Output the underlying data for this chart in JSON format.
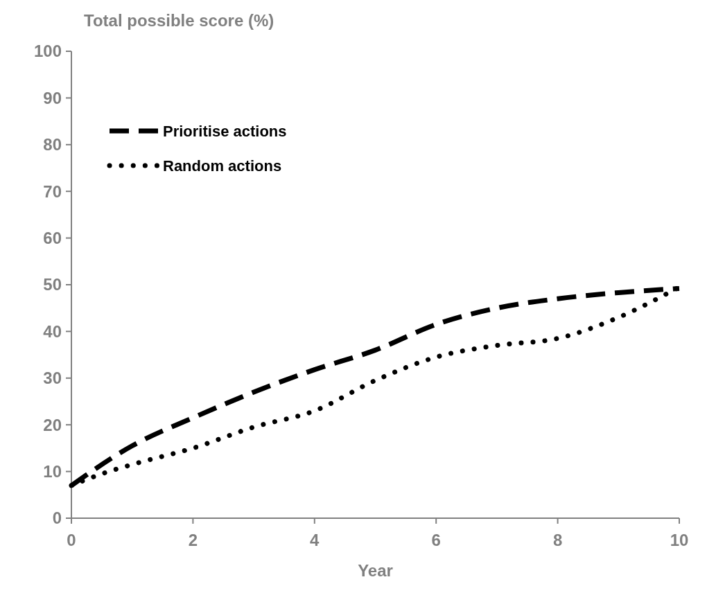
{
  "chart_data": {
    "type": "line",
    "ylabel": "Total possible score (%)",
    "xlabel": "Year",
    "xlim": [
      0,
      10
    ],
    "xticks": [
      0,
      2,
      4,
      6,
      8,
      10
    ],
    "ylim": [
      0,
      100
    ],
    "yticks": [
      0,
      10,
      20,
      30,
      40,
      50,
      60,
      70,
      80,
      90,
      100
    ],
    "grid": false,
    "legend": "top left",
    "marker": "none",
    "series": [
      {
        "name": "Prioritise actions",
        "color": "#000000",
        "line_style": "dashed",
        "x": [
          0,
          1,
          2,
          3,
          4,
          5,
          6,
          7,
          8,
          9,
          10
        ],
        "values": [
          7,
          15.5,
          21.5,
          27,
          31.8,
          36,
          41.5,
          45,
          47,
          48.3,
          49.2
        ]
      },
      {
        "name": "Random actions",
        "color": "#000000",
        "line_style": "dotted",
        "x": [
          0,
          0.5,
          1,
          2,
          3,
          4,
          5,
          6,
          7,
          8,
          9,
          10
        ],
        "values": [
          7,
          9.5,
          11.5,
          15,
          19.5,
          23,
          29.5,
          34.5,
          37,
          38.5,
          43,
          49.5
        ]
      }
    ]
  }
}
